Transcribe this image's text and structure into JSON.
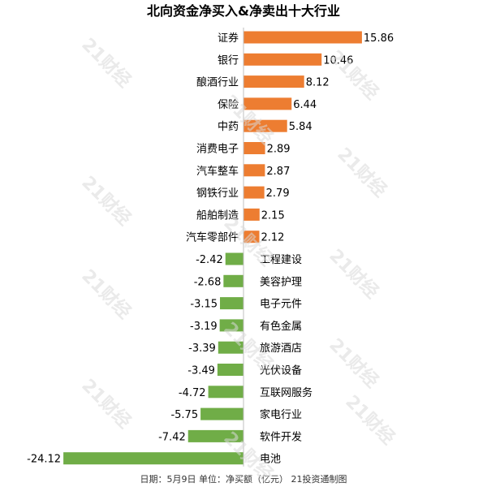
{
  "chart_data": {
    "type": "bar",
    "orientation": "horizontal",
    "title": "北向资金净买入&净卖出十大行业",
    "footer": "日期：5月9日 单位：净买额（亿元） 21投资通制图",
    "categories": [
      "证券",
      "银行",
      "酿酒行业",
      "保险",
      "中药",
      "消费电子",
      "汽车整车",
      "钢铁行业",
      "船舶制造",
      "汽车零部件",
      "工程建设",
      "美容护理",
      "电子元件",
      "有色金属",
      "旅游酒店",
      "光伏设备",
      "互联网服务",
      "家电行业",
      "软件开发",
      "电池"
    ],
    "values": [
      15.86,
      10.46,
      8.12,
      6.44,
      5.84,
      2.89,
      2.87,
      2.79,
      2.15,
      2.12,
      -2.42,
      -2.68,
      -3.15,
      -3.19,
      -3.39,
      -3.49,
      -4.72,
      -5.75,
      -7.42,
      -24.12
    ],
    "value_labels": [
      "15.86",
      "10.46",
      "8.12",
      "6.44",
      "5.84",
      "2.89",
      "2.87",
      "2.79",
      "2.15",
      "2.12",
      "-2.42",
      "-2.68",
      "-3.15",
      "-3.19",
      "-3.39",
      "-3.49",
      "-4.72",
      "-5.75",
      "-7.42",
      "-24.12"
    ],
    "colors": {
      "positive": "#ed7d31",
      "negative": "#70ad47"
    },
    "xlim": [
      -24.12,
      15.86
    ],
    "grid": false,
    "legend": "none"
  },
  "watermark": "21财经"
}
